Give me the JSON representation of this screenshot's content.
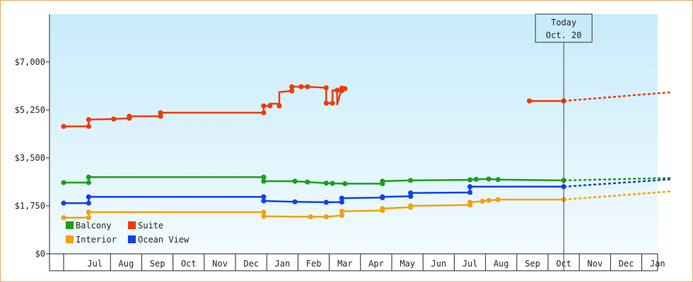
{
  "chart_data": {
    "type": "line",
    "currency_prefix": "$",
    "x_unit": "months since Jun (x=1 is Jul, x=19 is Jan)",
    "ylim": [
      0,
      8750
    ],
    "yticks": [
      {
        "value": 0,
        "label": "$0"
      },
      {
        "value": 1750,
        "label": "$1,750"
      },
      {
        "value": 3500,
        "label": "$3,500"
      },
      {
        "value": 5250,
        "label": "$5,250"
      },
      {
        "value": 7000,
        "label": "$7,000"
      }
    ],
    "xlim": [
      0,
      19.45
    ],
    "month_labels": [
      {
        "x": 1,
        "label": "Jul"
      },
      {
        "x": 2,
        "label": "Aug"
      },
      {
        "x": 3,
        "label": "Sep"
      },
      {
        "x": 4,
        "label": "Oct"
      },
      {
        "x": 5,
        "label": "Nov"
      },
      {
        "x": 6,
        "label": "Dec"
      },
      {
        "x": 7,
        "label": "Jan"
      },
      {
        "x": 8,
        "label": "Feb"
      },
      {
        "x": 9,
        "label": "Mar"
      },
      {
        "x": 10,
        "label": "Apr"
      },
      {
        "x": 11,
        "label": "May"
      },
      {
        "x": 12,
        "label": "Jun"
      },
      {
        "x": 13,
        "label": "Jul"
      },
      {
        "x": 14,
        "label": "Aug"
      },
      {
        "x": 15,
        "label": "Sep"
      },
      {
        "x": 16,
        "label": "Oct"
      },
      {
        "x": 17,
        "label": "Nov"
      },
      {
        "x": 18,
        "label": "Dec"
      },
      {
        "x": 19,
        "label": "Jan"
      }
    ],
    "today": {
      "x": 16.0,
      "line1": "Today",
      "line2": "Oct. 20"
    },
    "grid": false,
    "legend_position": "bottom-left",
    "series": [
      {
        "name": "Balcony",
        "color": "#18a018",
        "segments": [
          [
            [
              0.0,
              2600
            ],
            [
              0.8,
              2600
            ],
            [
              0.8,
              2800
            ],
            [
              6.4,
              2800
            ],
            [
              6.4,
              2650
            ],
            [
              7.4,
              2650
            ],
            [
              7.8,
              2620
            ],
            [
              8.4,
              2580
            ],
            [
              8.6,
              2570
            ],
            [
              9.0,
              2560
            ],
            [
              10.2,
              2560
            ],
            [
              10.2,
              2650
            ],
            [
              11.1,
              2680
            ],
            [
              13.0,
              2700
            ],
            [
              13.2,
              2720
            ],
            [
              13.6,
              2730
            ],
            [
              13.9,
              2710
            ],
            [
              16.0,
              2680
            ]
          ]
        ],
        "projection": [
          [
            16.0,
            2680
          ],
          [
            19.45,
            2770
          ]
        ]
      },
      {
        "name": "Suite",
        "color": "#f03a0a",
        "segments": [
          [
            [
              0.0,
              4650
            ],
            [
              0.8,
              4650
            ],
            [
              0.8,
              4900
            ],
            [
              1.6,
              4920
            ],
            [
              2.1,
              4950
            ],
            [
              2.1,
              5020
            ],
            [
              3.1,
              5020
            ],
            [
              3.1,
              5150
            ],
            [
              6.4,
              5150
            ],
            [
              6.4,
              5400
            ],
            [
              6.6,
              5400
            ],
            [
              6.6,
              5480
            ],
            [
              6.9,
              5480
            ],
            [
              6.9,
              5900
            ],
            [
              7.3,
              5950
            ],
            [
              7.3,
              6100
            ],
            [
              7.8,
              6100
            ],
            [
              8.4,
              6060
            ],
            [
              8.4,
              5500
            ],
            [
              8.6,
              5500
            ],
            [
              8.6,
              5970
            ],
            [
              8.75,
              5970
            ],
            [
              8.75,
              5450
            ],
            [
              8.9,
              6050
            ],
            [
              8.9,
              5960
            ],
            [
              9.0,
              6030
            ]
          ],
          [
            [
              14.9,
              5580
            ],
            [
              16.0,
              5580
            ]
          ]
        ],
        "projection": [
          [
            16.0,
            5580
          ],
          [
            19.45,
            5900
          ]
        ]
      },
      {
        "name": "Interior",
        "color": "#f5a00a",
        "segments": [
          [
            [
              0.0,
              1320
            ],
            [
              0.8,
              1320
            ],
            [
              0.8,
              1520
            ],
            [
              6.4,
              1520
            ],
            [
              6.4,
              1370
            ],
            [
              7.9,
              1350
            ],
            [
              8.4,
              1350
            ],
            [
              8.9,
              1400
            ],
            [
              8.9,
              1550
            ],
            [
              10.2,
              1580
            ],
            [
              10.2,
              1650
            ],
            [
              11.1,
              1700
            ],
            [
              11.1,
              1750
            ],
            [
              13.0,
              1780
            ],
            [
              13.0,
              1880
            ],
            [
              13.4,
              1920
            ],
            [
              13.6,
              1950
            ],
            [
              13.9,
              1980
            ],
            [
              16.0,
              1980
            ]
          ]
        ],
        "projection": [
          [
            16.0,
            1980
          ],
          [
            19.45,
            2280
          ]
        ]
      },
      {
        "name": "Ocean View",
        "color": "#1040f0",
        "segments": [
          [
            [
              0.0,
              1850
            ],
            [
              0.8,
              1850
            ],
            [
              0.8,
              2080
            ],
            [
              6.4,
              2080
            ],
            [
              6.4,
              1930
            ],
            [
              7.4,
              1900
            ],
            [
              8.4,
              1880
            ],
            [
              8.9,
              1890
            ],
            [
              8.9,
              2030
            ],
            [
              10.2,
              2050
            ],
            [
              10.2,
              2080
            ],
            [
              11.1,
              2100
            ],
            [
              11.1,
              2220
            ],
            [
              13.0,
              2240
            ],
            [
              13.0,
              2450
            ],
            [
              16.0,
              2450
            ]
          ]
        ],
        "projection": [
          [
            16.0,
            2450
          ],
          [
            19.45,
            2720
          ]
        ]
      }
    ],
    "markers": [
      {
        "series": "Balcony",
        "points": [
          [
            0.0,
            2600
          ],
          [
            0.8,
            2600
          ],
          [
            0.8,
            2800
          ],
          [
            6.4,
            2800
          ],
          [
            6.4,
            2650
          ],
          [
            7.4,
            2650
          ],
          [
            7.8,
            2620
          ],
          [
            8.4,
            2580
          ],
          [
            8.6,
            2570
          ],
          [
            9.0,
            2560
          ],
          [
            10.2,
            2560
          ],
          [
            10.2,
            2650
          ],
          [
            11.1,
            2680
          ],
          [
            13.0,
            2700
          ],
          [
            13.2,
            2720
          ],
          [
            13.6,
            2730
          ],
          [
            13.9,
            2710
          ],
          [
            16.0,
            2680
          ]
        ]
      },
      {
        "series": "Suite",
        "points": [
          [
            0.0,
            4650
          ],
          [
            0.8,
            4650
          ],
          [
            0.8,
            4900
          ],
          [
            1.6,
            4920
          ],
          [
            2.1,
            4950
          ],
          [
            2.1,
            5020
          ],
          [
            3.1,
            5020
          ],
          [
            3.1,
            5150
          ],
          [
            6.4,
            5150
          ],
          [
            6.4,
            5400
          ],
          [
            6.6,
            5400
          ],
          [
            6.9,
            5400
          ],
          [
            7.3,
            5950
          ],
          [
            7.3,
            6100
          ],
          [
            7.6,
            6100
          ],
          [
            7.8,
            6100
          ],
          [
            8.4,
            6060
          ],
          [
            8.4,
            5500
          ],
          [
            8.6,
            5500
          ],
          [
            8.75,
            5970
          ],
          [
            8.9,
            6050
          ],
          [
            8.9,
            5960
          ],
          [
            9.0,
            6030
          ],
          [
            14.9,
            5580
          ],
          [
            16.0,
            5580
          ]
        ]
      },
      {
        "series": "Interior",
        "points": [
          [
            0.0,
            1320
          ],
          [
            0.8,
            1320
          ],
          [
            0.8,
            1520
          ],
          [
            6.4,
            1520
          ],
          [
            6.4,
            1370
          ],
          [
            7.9,
            1350
          ],
          [
            8.4,
            1350
          ],
          [
            8.9,
            1400
          ],
          [
            8.9,
            1550
          ],
          [
            10.2,
            1580
          ],
          [
            10.2,
            1650
          ],
          [
            11.1,
            1700
          ],
          [
            11.1,
            1750
          ],
          [
            13.0,
            1780
          ],
          [
            13.0,
            1880
          ],
          [
            13.4,
            1920
          ],
          [
            13.6,
            1950
          ],
          [
            13.9,
            1980
          ],
          [
            16.0,
            1980
          ]
        ]
      },
      {
        "series": "Ocean View",
        "points": [
          [
            0.0,
            1850
          ],
          [
            0.8,
            1850
          ],
          [
            0.8,
            2080
          ],
          [
            6.4,
            2080
          ],
          [
            6.4,
            1930
          ],
          [
            7.4,
            1900
          ],
          [
            8.4,
            1880
          ],
          [
            8.9,
            1890
          ],
          [
            8.9,
            2030
          ],
          [
            10.2,
            2050
          ],
          [
            10.2,
            2080
          ],
          [
            11.1,
            2100
          ],
          [
            11.1,
            2220
          ],
          [
            13.0,
            2240
          ],
          [
            13.0,
            2450
          ],
          [
            16.0,
            2450
          ]
        ]
      }
    ],
    "legend": [
      {
        "name": "Balcony",
        "color": "#18a018"
      },
      {
        "name": "Suite",
        "color": "#f03a0a"
      },
      {
        "name": "Interior",
        "color": "#f5a00a"
      },
      {
        "name": "Ocean View",
        "color": "#1040f0"
      }
    ]
  }
}
